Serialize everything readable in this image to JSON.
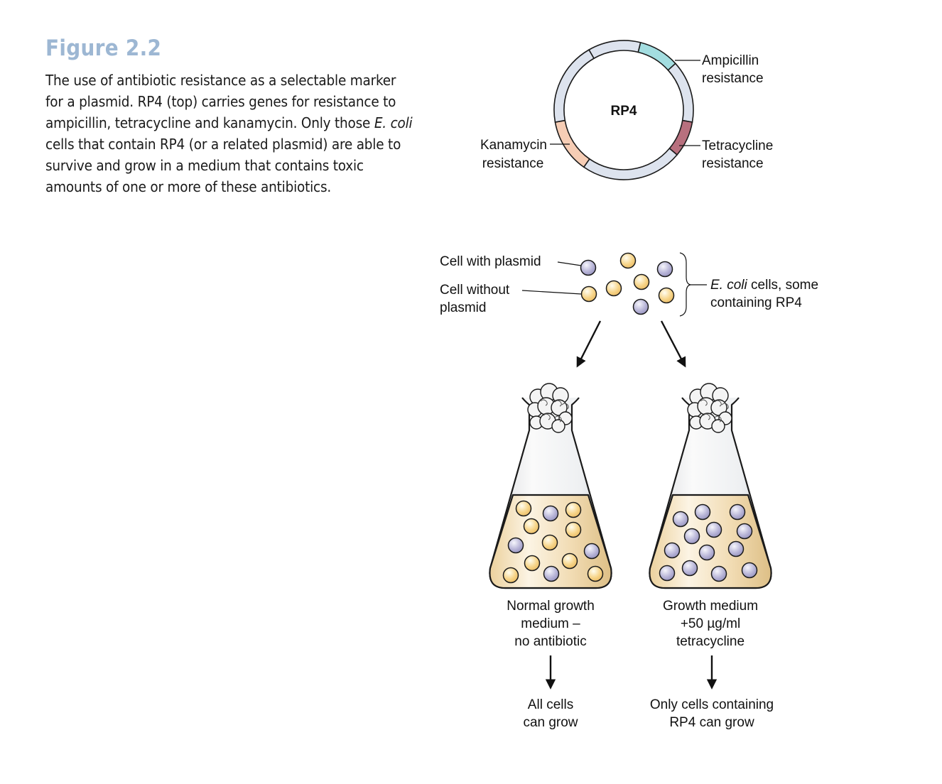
{
  "figure": {
    "title": "Figure 2.2",
    "caption_lines": [
      [
        "The use of antibiotic resistance as a selectable marker",
        ""
      ],
      [
        "for a plasmid. RP4 (top) carries genes for resistance to",
        ""
      ],
      [
        "ampicillin, tetracycline and kanamycin. Only those ",
        "E. coli"
      ],
      [
        "cells that contain RP4 (or a related plasmid) are able to",
        ""
      ],
      [
        "survive and grow in a medium that contains toxic",
        ""
      ],
      [
        "amounts of one or more of these antibiotics.",
        ""
      ]
    ]
  },
  "plasmid": {
    "name": "RP4",
    "ampicillin": [
      "Ampicillin",
      "resistance"
    ],
    "tetracycline": [
      "Tetracycline",
      "resistance"
    ],
    "kanamycin": [
      "Kanamycin",
      "resistance"
    ],
    "colors": {
      "ring": "#dde3ee",
      "ampicillin": "#a3dde0",
      "tetracycline": "#b8707e",
      "kanamycin": "#f6cdb5"
    }
  },
  "cells": {
    "with_plasmid_label": "Cell with plasmid",
    "without_plasmid_label": [
      "Cell without",
      "plasmid"
    ],
    "group_label_italic": "E. coli",
    "group_label_rest": " cells, some",
    "group_label_line2": "containing RP4",
    "colors": {
      "with_plasmid": "#b9b6d8",
      "without_plasmid": "#f7d58a"
    }
  },
  "flask_left": {
    "medium": [
      "Normal growth",
      "medium –",
      "no antibiotic"
    ],
    "result": [
      "All cells",
      "can grow"
    ]
  },
  "flask_right": {
    "medium": [
      "Growth medium",
      "+50 µg/ml",
      "tetracycline"
    ],
    "result": [
      "Only cells containing",
      "RP4 can grow"
    ]
  }
}
